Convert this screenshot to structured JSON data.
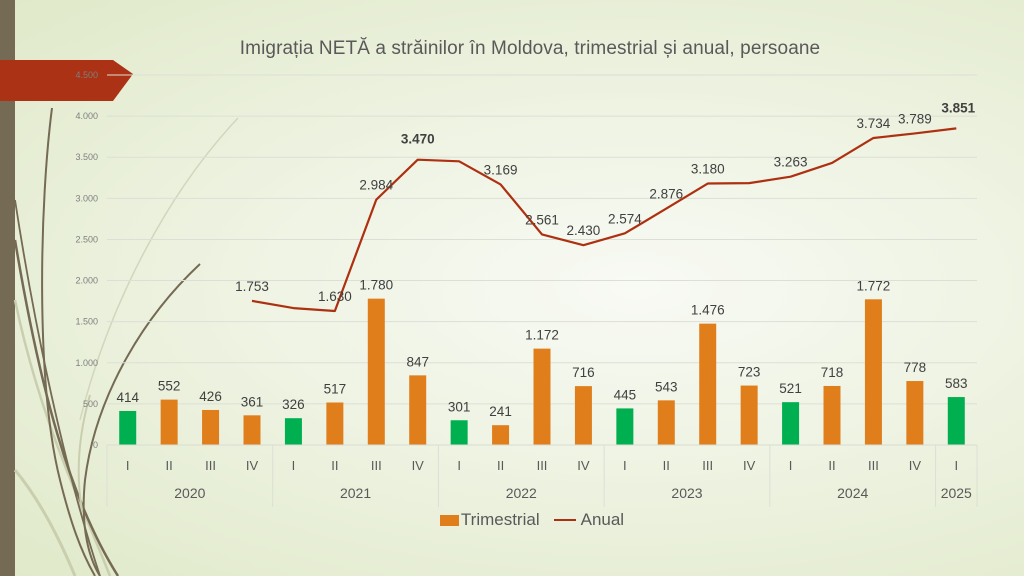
{
  "chart_data": {
    "type": "bar+line",
    "title": "Imigrația NETĂ a străinilor în Moldova, trimestrial și anual, persoane",
    "xlabel": "",
    "ylabel": "",
    "ylim": [
      0,
      4500
    ],
    "yticks": [
      0,
      500,
      1000,
      1500,
      2000,
      2500,
      3000,
      3500,
      4000,
      4500
    ],
    "ytick_labels": [
      "0",
      "500",
      "1.000",
      "1.500",
      "2.000",
      "2.500",
      "3.000",
      "3.500",
      "4.000",
      "4.500"
    ],
    "grid": true,
    "legend_position": "bottom",
    "categories": [
      "I",
      "II",
      "III",
      "IV",
      "I",
      "II",
      "III",
      "IV",
      "I",
      "II",
      "III",
      "IV",
      "I",
      "II",
      "III",
      "IV",
      "I",
      "II",
      "III",
      "IV",
      "I"
    ],
    "year_groups": [
      {
        "label": "2020",
        "span": 4
      },
      {
        "label": "2021",
        "span": 4
      },
      {
        "label": "2022",
        "span": 4
      },
      {
        "label": "2023",
        "span": 4
      },
      {
        "label": "2024",
        "span": 4
      },
      {
        "label": "2025",
        "span": 1
      }
    ],
    "series": [
      {
        "name": "Trimestrial",
        "type": "bar",
        "color": "#e07e1b",
        "highlight_color": "#00b050",
        "highlight_rule": "first quarter (I) bars are green",
        "values": [
          414,
          552,
          426,
          361,
          326,
          517,
          1780,
          847,
          301,
          241,
          1172,
          716,
          445,
          543,
          1476,
          723,
          521,
          718,
          1772,
          778,
          583
        ],
        "labels": [
          "414",
          "552",
          "426",
          "361",
          "326",
          "517",
          "1.780",
          "847",
          "301",
          "241",
          "1.172",
          "716",
          "445",
          "543",
          "1.476",
          "723",
          "521",
          "718",
          "1.772",
          "778",
          "583"
        ]
      },
      {
        "name": "Anual",
        "type": "line",
        "color": "#ad3011",
        "values": [
          null,
          null,
          null,
          1753,
          1665,
          1630,
          2984,
          3470,
          3450,
          3169,
          2561,
          2430,
          2574,
          2876,
          3180,
          3185,
          3263,
          3430,
          3734,
          3789,
          3851
        ],
        "labels": [
          null,
          null,
          null,
          "1.753",
          null,
          "1.630",
          "2.984",
          "3.470",
          null,
          "3.169",
          "2.561",
          "2.430",
          "2.574",
          "2.876",
          "3.180",
          null,
          "3.263",
          null,
          "3.734",
          "3.789",
          "3.851"
        ],
        "bold_labels": [
          "3.470",
          "3.851"
        ]
      }
    ]
  },
  "legend": {
    "bar_label": "Trimestrial",
    "line_label": "Anual"
  },
  "colors": {
    "bar": "#e07e1b",
    "bar_q1": "#00b050",
    "line": "#ad3011",
    "banner": "#ab3214",
    "side_bar": "#756a53"
  }
}
